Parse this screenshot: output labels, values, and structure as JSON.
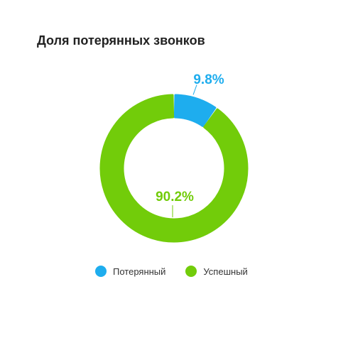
{
  "chart_data": {
    "type": "pie",
    "title": "Доля потерянных звонков",
    "categories": [
      "Потерянный",
      "Успешный"
    ],
    "values": [
      9.8,
      90.2
    ],
    "value_labels": [
      "9.8%",
      "90.2%"
    ],
    "colors": [
      "#1EADEE",
      "#72CC0A"
    ],
    "legend_position": "bottom",
    "style": "donut"
  }
}
